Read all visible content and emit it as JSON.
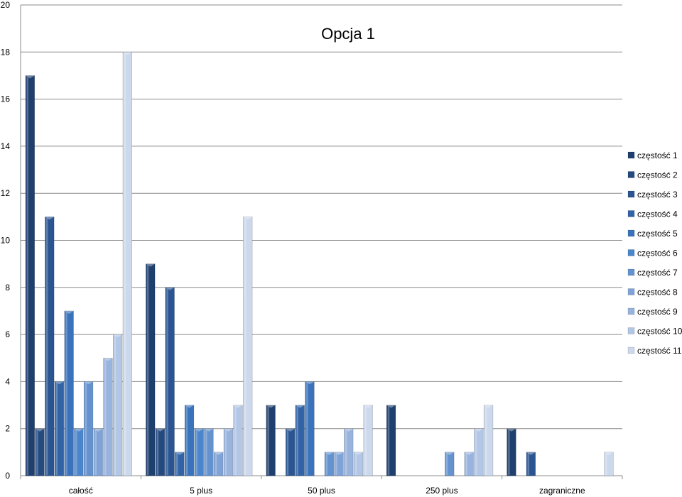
{
  "chart_data": {
    "type": "bar",
    "title": "Opcja 1",
    "xlabel": "",
    "ylabel": "",
    "ylim": [
      0,
      20
    ],
    "yticks": [
      0,
      2,
      4,
      6,
      8,
      10,
      12,
      14,
      16,
      18,
      20
    ],
    "grid": true,
    "legend_position": "right",
    "categories": [
      "całość",
      "5 plus",
      "50 plus",
      "250 plus",
      "zagraniczne"
    ],
    "series": [
      {
        "name": "częstość 1",
        "color": "#1f3f6e",
        "values": [
          17,
          9,
          3,
          3,
          2
        ]
      },
      {
        "name": "częstość 2",
        "color": "#244a80",
        "values": [
          2,
          2,
          0,
          0,
          0
        ]
      },
      {
        "name": "częstość 3",
        "color": "#2a5592",
        "values": [
          11,
          8,
          2,
          0,
          1
        ]
      },
      {
        "name": "częstość 4",
        "color": "#3163a6",
        "values": [
          4,
          1,
          3,
          0,
          0
        ]
      },
      {
        "name": "częstość 5",
        "color": "#3a73bb",
        "values": [
          7,
          3,
          4,
          0,
          0
        ]
      },
      {
        "name": "częstość 6",
        "color": "#4b85cb",
        "values": [
          2,
          2,
          0,
          0,
          0
        ]
      },
      {
        "name": "częstość 7",
        "color": "#6392cf",
        "values": [
          4,
          2,
          1,
          1,
          0
        ]
      },
      {
        "name": "częstość 8",
        "color": "#7fa3d6",
        "values": [
          2,
          1,
          1,
          0,
          0
        ]
      },
      {
        "name": "częstość 9",
        "color": "#98b3dd",
        "values": [
          5,
          2,
          2,
          1,
          0
        ]
      },
      {
        "name": "częstość 10",
        "color": "#b2c6e5",
        "values": [
          6,
          3,
          1,
          2,
          0
        ]
      },
      {
        "name": "częstość 11",
        "color": "#ccd8ec",
        "values": [
          18,
          11,
          3,
          3,
          1
        ]
      }
    ]
  }
}
